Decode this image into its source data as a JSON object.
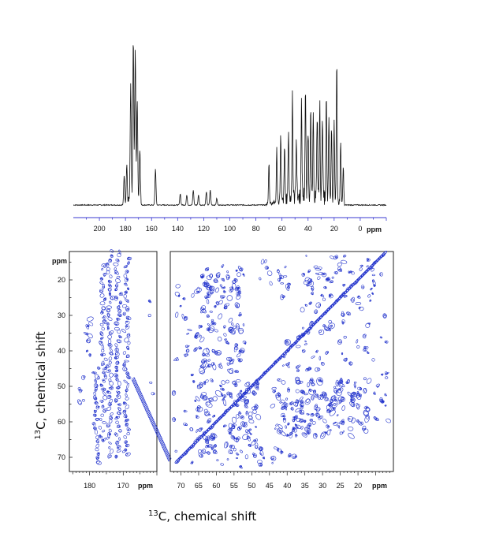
{
  "chart_data": [
    {
      "type": "line",
      "name": "1D 13C spectrum",
      "xlabel": "ppm",
      "xlim": [
        220,
        -20
      ],
      "x_ticks": [
        200,
        180,
        160,
        140,
        120,
        100,
        80,
        60,
        40,
        20,
        0
      ],
      "tick_labels": [
        "200",
        "180",
        "160",
        "140",
        "120",
        "100",
        "80",
        "60",
        "40",
        "20",
        "0"
      ],
      "peaks": [
        {
          "ppm": 181,
          "height": 0.18
        },
        {
          "ppm": 179,
          "height": 0.25
        },
        {
          "ppm": 176,
          "height": 0.7
        },
        {
          "ppm": 174,
          "height": 0.98
        },
        {
          "ppm": 172.5,
          "height": 0.93
        },
        {
          "ppm": 171,
          "height": 0.6
        },
        {
          "ppm": 169,
          "height": 0.32
        },
        {
          "ppm": 157,
          "height": 0.22
        },
        {
          "ppm": 138,
          "height": 0.07
        },
        {
          "ppm": 133,
          "height": 0.06
        },
        {
          "ppm": 128,
          "height": 0.09
        },
        {
          "ppm": 124,
          "height": 0.06
        },
        {
          "ppm": 118,
          "height": 0.08
        },
        {
          "ppm": 115,
          "height": 0.09
        },
        {
          "ppm": 110,
          "height": 0.04
        },
        {
          "ppm": 70,
          "height": 0.25
        },
        {
          "ppm": 64,
          "height": 0.32
        },
        {
          "ppm": 61,
          "height": 0.4
        },
        {
          "ppm": 58,
          "height": 0.33
        },
        {
          "ppm": 55,
          "height": 0.43
        },
        {
          "ppm": 52,
          "height": 0.65
        },
        {
          "ppm": 49,
          "height": 0.38
        },
        {
          "ppm": 45,
          "height": 0.55
        },
        {
          "ppm": 42,
          "height": 0.65
        },
        {
          "ppm": 40,
          "height": 0.42
        },
        {
          "ppm": 38,
          "height": 0.5
        },
        {
          "ppm": 36,
          "height": 0.45
        },
        {
          "ppm": 33,
          "height": 0.5
        },
        {
          "ppm": 31,
          "height": 0.55
        },
        {
          "ppm": 29,
          "height": 0.52
        },
        {
          "ppm": 26,
          "height": 0.62
        },
        {
          "ppm": 24,
          "height": 0.5
        },
        {
          "ppm": 22,
          "height": 0.45
        },
        {
          "ppm": 20,
          "height": 0.5
        },
        {
          "ppm": 18,
          "height": 0.85
        },
        {
          "ppm": 15,
          "height": 0.38
        },
        {
          "ppm": 13,
          "height": 0.22
        }
      ]
    },
    {
      "type": "heatmap",
      "name": "2D 13C-13C correlation contours, carbonyl region",
      "x_ticks": [
        180,
        170
      ],
      "x_tick_labels": [
        "180",
        "170"
      ],
      "xlim": [
        186,
        160
      ],
      "y_ticks": [
        20,
        30,
        40,
        50,
        60,
        70
      ],
      "y_tick_labels": [
        "20",
        "30",
        "40",
        "50",
        "60",
        "70"
      ],
      "ylim": [
        12,
        74
      ],
      "color": "#2233cc"
    },
    {
      "type": "heatmap",
      "name": "2D 13C-13C correlation contours, aliphatic region",
      "x_ticks": [
        70,
        65,
        60,
        55,
        50,
        45,
        40,
        35,
        30,
        25,
        20
      ],
      "x_tick_labels": [
        "70",
        "65",
        "60",
        "55",
        "50",
        "45",
        "40",
        "35",
        "30",
        "25",
        "20"
      ],
      "xlim": [
        73,
        10
      ],
      "ylim": [
        12,
        74
      ],
      "color": "#2233cc"
    }
  ],
  "labels": {
    "ppm_1d": "ppm",
    "ppm_2d_left_x": "ppm",
    "ppm_2d_left_y": "ppm",
    "ppm_2d_right_x": "ppm",
    "isotope_sup": "13",
    "axis_text": "C, chemical shift"
  },
  "colors": {
    "spectrum_line": "#111111",
    "axis_blue": "#3a3ad0",
    "contour_blue": "#2233cc"
  }
}
